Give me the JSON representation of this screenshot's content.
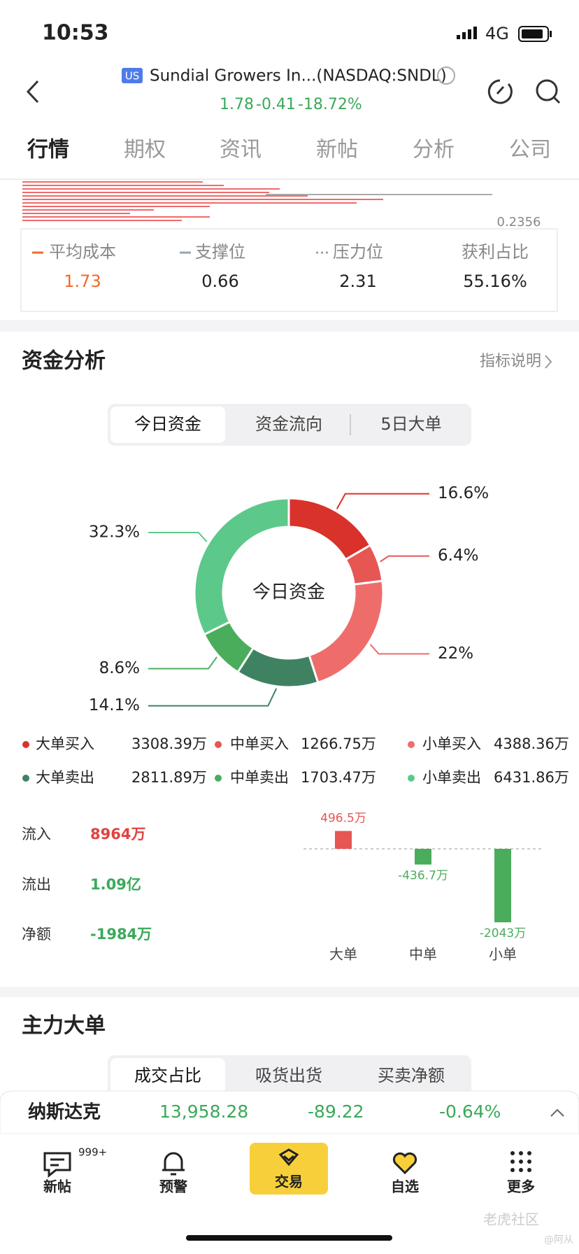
{
  "status_bar": {
    "time": "10:53",
    "network": "4G"
  },
  "header": {
    "market_badge": "US",
    "stock_name": "Sundial Growers In...(NASDAQ:SNDL)",
    "price": "1.78",
    "change": "-0.41",
    "change_pct": "-18.72%"
  },
  "tabs": [
    "行情",
    "期权",
    "资讯",
    "新帖",
    "分析",
    "公司"
  ],
  "chip_summary": {
    "price_label": "0.2356",
    "stats": [
      {
        "label": "平均成本",
        "value": "1.73"
      },
      {
        "label": "支撑位",
        "value": "0.66"
      },
      {
        "label": "压力位",
        "value": "2.31"
      },
      {
        "label": "获利占比",
        "value": "55.16%"
      }
    ]
  },
  "fund_analysis": {
    "title": "资金分析",
    "help_link": "指标说明",
    "segments": [
      "今日资金",
      "资金流向",
      "5日大单"
    ],
    "donut": {
      "type": "pie",
      "center_label": "今日资金",
      "categories": [
        "大单买入",
        "中单买入",
        "小单买入",
        "大单卖出",
        "中单卖出",
        "小单卖出"
      ],
      "values": [
        16.6,
        6.4,
        22,
        14.1,
        8.6,
        32.3
      ],
      "value_labels": [
        "16.6%",
        "6.4%",
        "22%",
        "14.1%",
        "8.6%",
        "32.3%"
      ],
      "colors": [
        "#d9322b",
        "#e65653",
        "#ee6d6b",
        "#3f8262",
        "#4aad5c",
        "#5cc98a"
      ]
    },
    "legend_amounts": [
      "3308.39万",
      "1266.75万",
      "4388.36万",
      "2811.89万",
      "1703.47万",
      "6431.86万"
    ],
    "totals": [
      {
        "label": "流入",
        "value": "8964万"
      },
      {
        "label": "流出",
        "value": "1.09亿"
      },
      {
        "label": "净额",
        "value": "-1984万"
      }
    ],
    "net_bars": {
      "type": "bar",
      "categories": [
        "大单",
        "中单",
        "小单"
      ],
      "values": [
        496.5,
        -436.7,
        -2043
      ],
      "value_labels": [
        "496.5万",
        "-436.7万",
        "-2043万"
      ],
      "colors": [
        "#e65653",
        "#4aad5c",
        "#4aad5c"
      ]
    }
  },
  "main_orders": {
    "title": "主力大单",
    "segments": [
      "成交占比",
      "吸货出货",
      "买卖净额"
    ]
  },
  "index_ticker": {
    "name": "纳斯达克",
    "price": "13,958.28",
    "change": "-89.22",
    "change_pct": "-0.64%"
  },
  "bottom_nav": {
    "badge": "999+",
    "items": [
      "新帖",
      "预警",
      "交易",
      "自选",
      "更多"
    ]
  },
  "watermark": {
    "brand": "老虎社区",
    "user": "@阿从"
  }
}
